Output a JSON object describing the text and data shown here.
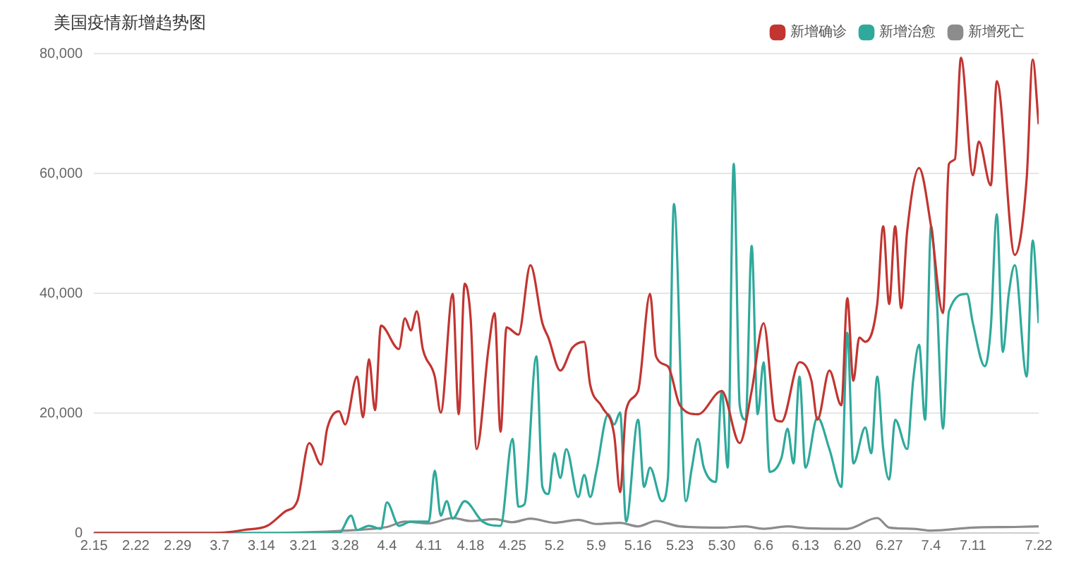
{
  "chart_data": {
    "type": "line",
    "title": "美国疫情新增趋势图",
    "xlim": [
      "--02-15",
      "--07-22"
    ],
    "xticks": [
      {
        "value": "--02-15",
        "label": "2.15"
      },
      {
        "value": "--02-22",
        "label": "2.22"
      },
      {
        "value": "--02-29",
        "label": "2.29"
      },
      {
        "value": "--03-07",
        "label": "3.7"
      },
      {
        "value": "--03-14",
        "label": "3.14"
      },
      {
        "value": "--03-21",
        "label": "3.21"
      },
      {
        "value": "--03-28",
        "label": "3.28"
      },
      {
        "value": "--04-04",
        "label": "4.4"
      },
      {
        "value": "--04-11",
        "label": "4.11"
      },
      {
        "value": "--04-18",
        "label": "4.18"
      },
      {
        "value": "--04-25",
        "label": "4.25"
      },
      {
        "value": "--05-02",
        "label": "5.2"
      },
      {
        "value": "--05-09",
        "label": "5.9"
      },
      {
        "value": "--05-16",
        "label": "5.16"
      },
      {
        "value": "--05-23",
        "label": "5.23"
      },
      {
        "value": "--05-30",
        "label": "5.30"
      },
      {
        "value": "--06-06",
        "label": "6.6"
      },
      {
        "value": "--06-13",
        "label": "6.13"
      },
      {
        "value": "--06-20",
        "label": "6.20"
      },
      {
        "value": "--06-27",
        "label": "6.27"
      },
      {
        "value": "--07-04",
        "label": "7.4"
      },
      {
        "value": "--07-11",
        "label": "7.11"
      },
      {
        "value": "--07-22",
        "label": "7.22"
      }
    ],
    "ylim": [
      0,
      80000
    ],
    "yticks": [
      0,
      {
        "value": 20000,
        "label": "20,000"
      },
      {
        "value": 40000,
        "label": "40,000"
      },
      {
        "value": 60000,
        "label": "60,000"
      },
      {
        "value": 80000,
        "label": "80,000"
      }
    ],
    "grid": "y",
    "legend": "top right",
    "marker": "none",
    "line_style": "solid",
    "series": [
      {
        "name": "新增确诊",
        "color": "#c23531",
        "x": [
          "--02-15",
          "--03-06",
          "--03-09",
          "--03-11",
          "--03-15",
          "--03-18",
          "--03-20",
          "--03-22",
          "--03-24",
          "--03-25",
          "--03-27",
          "--03-28",
          "--03-30",
          "--03-31",
          "--04-01",
          "--04-02",
          "--04-03",
          "--04-06",
          "--04-07",
          "--04-08",
          "--04-09",
          "--04-10",
          "--04-12",
          "--04-13",
          "--04-15",
          "--04-16",
          "--04-17",
          "--04-18",
          "--04-19",
          "--04-21",
          "--04-22",
          "--04-23",
          "--04-24",
          "--04-26",
          "--04-28",
          "--04-30",
          "--05-01",
          "--05-03",
          "--05-05",
          "--05-07",
          "--05-08",
          "--05-10",
          "--05-12",
          "--05-13",
          "--05-14",
          "--05-16",
          "--05-18",
          "--05-19",
          "--05-21",
          "--05-23",
          "--05-26",
          "--05-30",
          "--06-02",
          "--06-04",
          "--06-06",
          "--06-08",
          "--06-09",
          "--06-12",
          "--06-14",
          "--06-15",
          "--06-17",
          "--06-19",
          "--06-20",
          "--06-21",
          "--06-22",
          "--06-23",
          "--06-25",
          "--06-26",
          "--06-27",
          "--06-28",
          "--06-29",
          "--06-30",
          "--07-02",
          "--07-04",
          "--07-06",
          "--07-07",
          "--07-08",
          "--07-09",
          "--07-11",
          "--07-12",
          "--07-14",
          "--07-15",
          "--07-18",
          "--07-20",
          "--07-21",
          "--07-22"
        ],
        "values": [
          0,
          0,
          200,
          500,
          1200,
          3600,
          5300,
          15000,
          11400,
          17400,
          20300,
          18100,
          26100,
          19300,
          29000,
          20500,
          34600,
          30700,
          35800,
          33800,
          37000,
          30700,
          26100,
          20100,
          39900,
          19800,
          41600,
          35800,
          14000,
          30900,
          36700,
          16900,
          34300,
          33100,
          44700,
          35000,
          32600,
          27100,
          30900,
          31900,
          24700,
          21000,
          16400,
          6800,
          20500,
          23700,
          39900,
          29500,
          27800,
          21300,
          19800,
          23700,
          15000,
          23700,
          35000,
          18900,
          18600,
          28500,
          25400,
          18900,
          27100,
          21300,
          39200,
          25400,
          32600,
          31900,
          38200,
          51200,
          38200,
          51200,
          37500,
          50300,
          60900,
          51200,
          36700,
          61600,
          62400,
          79300,
          59700,
          65300,
          58000,
          75400,
          46400,
          59200,
          79000,
          68200
        ]
      },
      {
        "name": "新增治愈",
        "color": "#2fa99b",
        "x": [
          "--02-15",
          "--03-27",
          "--03-29",
          "--03-30",
          "--04-01",
          "--04-03",
          "--04-04",
          "--04-06",
          "--04-08",
          "--04-11",
          "--04-12",
          "--04-13",
          "--04-14",
          "--04-15",
          "--04-17",
          "--04-20",
          "--04-23",
          "--04-25",
          "--04-26",
          "--04-27",
          "--04-29",
          "--04-30",
          "--05-01",
          "--05-02",
          "--05-03",
          "--05-04",
          "--05-06",
          "--05-07",
          "--05-08",
          "--05-09",
          "--05-11",
          "--05-12",
          "--05-13",
          "--05-14",
          "--05-16",
          "--05-17",
          "--05-18",
          "--05-20",
          "--05-21",
          "--05-22",
          "--05-24",
          "--05-25",
          "--05-26",
          "--05-27",
          "--05-29",
          "--05-30",
          "--05-31",
          "--06-01",
          "--06-02",
          "--06-03",
          "--06-04",
          "--06-05",
          "--06-06",
          "--06-07",
          "--06-09",
          "--06-10",
          "--06-11",
          "--06-12",
          "--06-13",
          "--06-15",
          "--06-17",
          "--06-19",
          "--06-20",
          "--06-21",
          "--06-23",
          "--06-24",
          "--06-25",
          "--06-26",
          "--06-27",
          "--06-28",
          "--06-30",
          "--07-01",
          "--07-02",
          "--07-03",
          "--07-04",
          "--07-05",
          "--07-06",
          "--07-07",
          "--07-10",
          "--07-11",
          "--07-13",
          "--07-14",
          "--07-15",
          "--07-16",
          "--07-17",
          "--07-18",
          "--07-20",
          "--07-21",
          "--07-22"
        ],
        "values": [
          0,
          0,
          2900,
          500,
          1200,
          700,
          5100,
          1200,
          1900,
          1900,
          10400,
          2900,
          5300,
          2400,
          5300,
          1900,
          1200,
          15700,
          4400,
          4800,
          29500,
          7700,
          6500,
          13300,
          9200,
          14000,
          6000,
          9700,
          6000,
          10200,
          19800,
          18100,
          20100,
          1900,
          18900,
          7700,
          10900,
          5300,
          9200,
          54900,
          5300,
          10900,
          15700,
          10900,
          8500,
          23700,
          10900,
          61600,
          21300,
          18900,
          47900,
          19800,
          28500,
          10200,
          12600,
          17400,
          11600,
          26100,
          10900,
          19300,
          14000,
          7700,
          33400,
          11600,
          17600,
          13300,
          26100,
          14000,
          8900,
          18900,
          14000,
          25400,
          31400,
          18900,
          51200,
          38200,
          17400,
          37000,
          39900,
          35000,
          27800,
          34300,
          53200,
          30200,
          39900,
          44700,
          26100,
          48800,
          35000
        ]
      },
      {
        "name": "新增死亡",
        "color": "#8c8c8c",
        "x": [
          "--02-15",
          "--03-14",
          "--03-21",
          "--03-28",
          "--04-04",
          "--04-07",
          "--04-11",
          "--04-15",
          "--04-18",
          "--04-22",
          "--04-25",
          "--04-28",
          "--05-02",
          "--05-06",
          "--05-09",
          "--05-13",
          "--05-16",
          "--05-19",
          "--05-23",
          "--05-30",
          "--06-03",
          "--06-06",
          "--06-10",
          "--06-13",
          "--06-20",
          "--06-25",
          "--06-27",
          "--07-01",
          "--07-04",
          "--07-11",
          "--07-18",
          "--07-22"
        ],
        "values": [
          0,
          0,
          100,
          400,
          1000,
          1900,
          1600,
          2500,
          2000,
          2300,
          1800,
          2400,
          1700,
          2200,
          1500,
          1700,
          1100,
          2000,
          1100,
          900,
          1100,
          700,
          1100,
          800,
          700,
          2500,
          900,
          700,
          400,
          900,
          1000,
          1100
        ]
      }
    ]
  }
}
